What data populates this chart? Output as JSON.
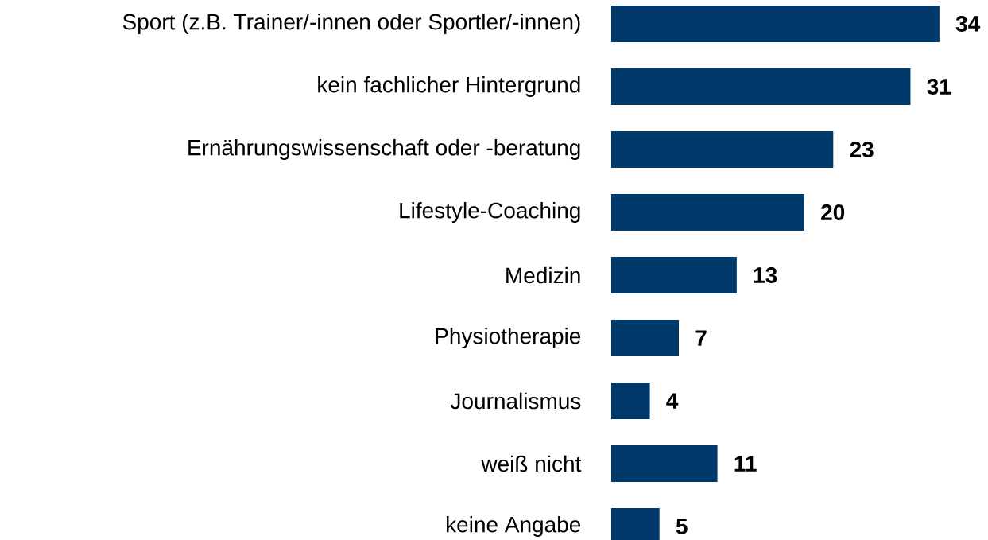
{
  "chart_data": {
    "type": "bar",
    "orientation": "horizontal",
    "categories": [
      "Sport (z.B. Trainer/-innen oder Sportler/-innen)",
      "kein fachlicher Hintergrund",
      "Ernährungswissenschaft oder -beratung",
      "Lifestyle-Coaching",
      "Medizin",
      "Physiotherapie",
      "Journalismus",
      "weiß nicht",
      "keine Angabe"
    ],
    "values": [
      34,
      31,
      23,
      20,
      13,
      7,
      4,
      11,
      5
    ],
    "color": "#003a6b",
    "data_labels": true
  }
}
